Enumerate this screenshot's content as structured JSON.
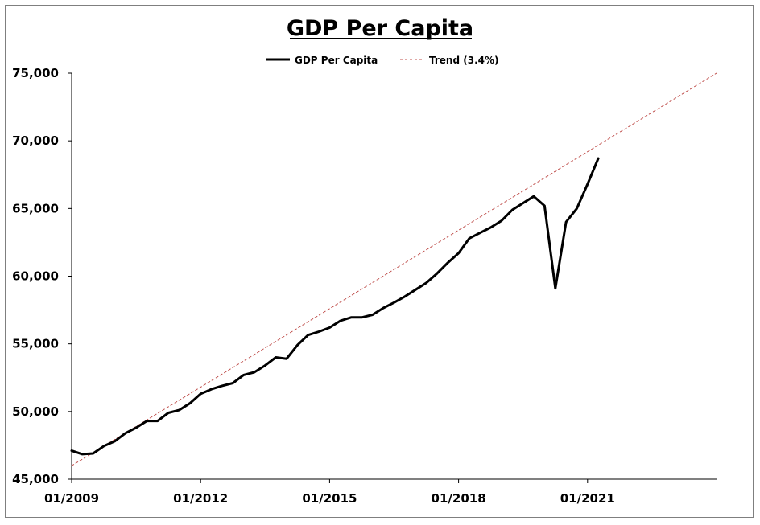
{
  "chart_data": {
    "type": "line",
    "title": "GDP Per Capita",
    "xlabel": "",
    "ylabel": "",
    "ylim": [
      45000,
      75000
    ],
    "yticks": [
      "45,000",
      "50,000",
      "55,000",
      "60,000",
      "65,000",
      "70,000",
      "75,000"
    ],
    "ytick_values": [
      45000,
      50000,
      55000,
      60000,
      65000,
      70000,
      75000
    ],
    "xlim": [
      "01/2009",
      "01/2024"
    ],
    "xticks": [
      "01/2009",
      "01/2012",
      "01/2015",
      "01/2018",
      "01/2021"
    ],
    "grid": false,
    "legend_position": "top",
    "series": [
      {
        "name": "GDP Per Capita",
        "color": "#000000",
        "style": "solid",
        "x": [
          "2009-01",
          "2009-04",
          "2009-07",
          "2009-10",
          "2010-01",
          "2010-04",
          "2010-07",
          "2010-10",
          "2011-01",
          "2011-04",
          "2011-07",
          "2011-10",
          "2012-01",
          "2012-04",
          "2012-07",
          "2012-10",
          "2013-01",
          "2013-04",
          "2013-07",
          "2013-10",
          "2014-01",
          "2014-04",
          "2014-07",
          "2014-10",
          "2015-01",
          "2015-04",
          "2015-07",
          "2015-10",
          "2016-01",
          "2016-04",
          "2016-07",
          "2016-10",
          "2017-01",
          "2017-04",
          "2017-07",
          "2017-10",
          "2018-01",
          "2018-04",
          "2018-07",
          "2018-10",
          "2019-01",
          "2019-04",
          "2019-07",
          "2019-10",
          "2020-01",
          "2020-04",
          "2020-07",
          "2020-10",
          "2021-01",
          "2021-04"
        ],
        "values": [
          47100,
          46850,
          46900,
          47450,
          47800,
          48400,
          48800,
          49300,
          49300,
          49900,
          50100,
          50600,
          51300,
          51650,
          51900,
          52100,
          52700,
          52900,
          53400,
          54000,
          53900,
          54900,
          55650,
          55900,
          56200,
          56700,
          56950,
          56950,
          57150,
          57650,
          58050,
          58500,
          59000,
          59500,
          60200,
          61000,
          61700,
          62800,
          63200,
          63600,
          64100,
          64900,
          65400,
          65900,
          65200,
          59100,
          64000,
          65000,
          66800,
          68700
        ]
      },
      {
        "name": "Trend (3.4%)",
        "color": "#c0504d",
        "style": "dashed",
        "x": [
          "2009-01",
          "2024-01"
        ],
        "values": [
          46000,
          75000
        ]
      }
    ]
  }
}
